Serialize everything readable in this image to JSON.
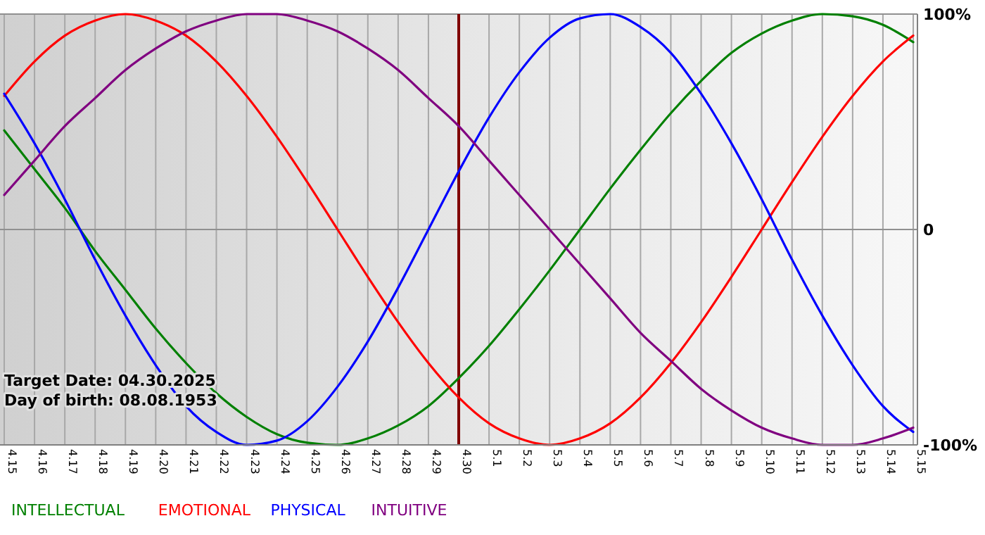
{
  "chart_data": {
    "type": "line",
    "categories": [
      "4.15",
      "4.16",
      "4.17",
      "4.18",
      "4.19",
      "4.20",
      "4.21",
      "4.22",
      "4.23",
      "4.24",
      "4.25",
      "4.26",
      "4.27",
      "4.28",
      "4.29",
      "4.30",
      "5.1",
      "5.2",
      "5.3",
      "5.4",
      "5.5",
      "5.6",
      "5.7",
      "5.8",
      "5.9",
      "5.10",
      "5.11",
      "5.12",
      "5.13",
      "5.14",
      "5.15"
    ],
    "series": [
      {
        "name": "INTELLECTUAL",
        "color": "#008000",
        "values": [
          46,
          28,
          10,
          -10,
          -28,
          -46,
          -62,
          -76,
          -87,
          -95,
          -99,
          -100,
          -97,
          -91,
          -82,
          -69,
          -54,
          -37,
          -19,
          0,
          19,
          37,
          54,
          69,
          82,
          91,
          97,
          100,
          99,
          95,
          87
        ]
      },
      {
        "name": "EMOTIONAL",
        "color": "#ff0000",
        "values": [
          62,
          78,
          90,
          97,
          100,
          97,
          90,
          78,
          62,
          43,
          22,
          0,
          -22,
          -43,
          -62,
          -78,
          -90,
          -97,
          -100,
          -97,
          -90,
          -78,
          -62,
          -43,
          -22,
          0,
          22,
          43,
          62,
          78,
          90
        ]
      },
      {
        "name": "PHYSICAL",
        "color": "#0000ff",
        "values": [
          63,
          40,
          14,
          -14,
          -40,
          -63,
          -82,
          -94,
          -100,
          -98,
          -89,
          -73,
          -52,
          -27,
          0,
          27,
          52,
          73,
          89,
          98,
          100,
          94,
          82,
          63,
          40,
          14,
          -14,
          -40,
          -63,
          -82,
          -94
        ]
      },
      {
        "name": "INTUITIVE",
        "color": "#800080",
        "values": [
          16,
          32,
          48,
          61,
          74,
          84,
          92,
          97,
          100,
          100,
          97,
          92,
          84,
          74,
          61,
          48,
          32,
          16,
          0,
          -16,
          -32,
          -48,
          -61,
          -74,
          -84,
          -92,
          -97,
          -100,
          -100,
          -97,
          -92
        ]
      }
    ],
    "ylim": [
      -100,
      100
    ],
    "yticks": [
      {
        "value": -100,
        "label": "-100%"
      },
      {
        "value": 0,
        "label": "0"
      },
      {
        "value": 100,
        "label": "100%"
      }
    ],
    "grid": true,
    "legend": "bottom",
    "ref_lines": [
      {
        "axis": "x",
        "value": "4.30",
        "color": "#800000"
      }
    ],
    "annotations": [
      "Target Date: 04.30.2025",
      "Day of birth: 08.08.1953"
    ]
  }
}
